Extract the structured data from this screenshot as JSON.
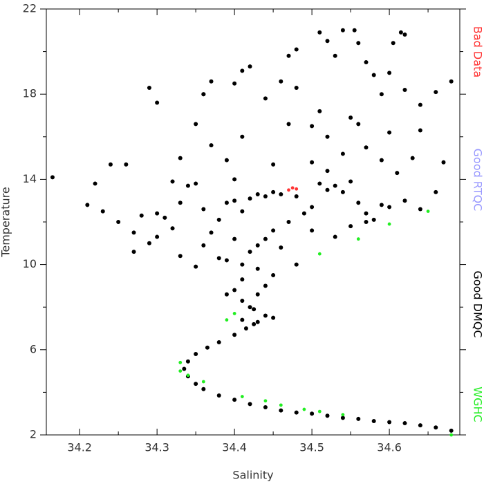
{
  "chart_data": {
    "type": "scatter",
    "xlabel": "Salinity",
    "ylabel": "Temperature",
    "xlim": [
      34.157,
      34.691
    ],
    "ylim": [
      2,
      22
    ],
    "xticks": [
      34.2,
      34.3,
      34.4,
      34.5,
      34.6
    ],
    "xminorticks": [
      34.25,
      34.35,
      34.45,
      34.55,
      34.65
    ],
    "yticks": [
      2,
      6,
      10,
      14,
      18,
      22
    ],
    "yminorticks": [
      4,
      8,
      12,
      16,
      20
    ],
    "series": [
      {
        "name": "Bad Data",
        "color": "#ff3333",
        "x": [
          34.47,
          34.475,
          34.48
        ],
        "y": [
          13.5,
          13.6,
          13.55
        ]
      },
      {
        "name": "Good RTQC",
        "color": "#9999ff",
        "x": [],
        "y": []
      },
      {
        "name": "Good DMQC",
        "color": "#000000",
        "x": [
          34.68,
          34.66,
          34.64,
          34.62,
          34.6,
          34.58,
          34.56,
          34.54,
          34.52,
          34.5,
          34.48,
          34.46,
          34.44,
          34.42,
          34.4,
          34.38,
          34.36,
          34.35,
          34.34,
          34.335,
          34.34,
          34.35,
          34.365,
          34.38,
          34.4,
          34.415,
          34.43,
          34.44,
          34.425,
          34.41,
          34.4,
          34.41,
          34.43,
          34.45,
          34.39,
          34.42,
          34.165,
          34.21,
          34.22,
          34.24,
          34.26,
          34.23,
          34.25,
          34.27,
          34.28,
          34.29,
          34.3,
          34.31,
          34.32,
          34.33,
          34.34,
          34.35,
          34.36,
          34.37,
          34.38,
          34.39,
          34.4,
          34.41,
          34.42,
          34.43,
          34.44,
          34.45,
          34.46,
          34.48,
          34.49,
          34.5,
          34.51,
          34.52,
          34.53,
          34.54,
          34.55,
          34.56,
          34.57,
          34.58,
          34.59,
          34.6,
          34.62,
          34.64,
          34.66,
          34.27,
          34.3,
          34.33,
          34.35,
          34.36,
          34.38,
          34.4,
          34.41,
          34.43,
          34.45,
          34.46,
          34.48,
          34.5,
          34.53,
          34.55,
          34.57,
          34.52,
          34.5,
          34.54,
          34.57,
          34.59,
          34.61,
          34.63,
          34.67,
          34.39,
          34.4,
          34.37,
          34.33,
          34.35,
          34.36,
          34.37,
          34.41,
          34.44,
          34.46,
          34.47,
          34.48,
          34.5,
          34.51,
          34.52,
          34.55,
          34.56,
          34.59,
          34.6,
          34.62,
          34.64,
          34.66,
          34.68,
          34.29,
          34.3,
          34.36,
          34.4,
          34.41,
          34.42,
          34.47,
          34.48,
          34.51,
          34.52,
          34.53,
          34.54,
          34.555,
          34.56,
          34.57,
          34.58,
          34.6,
          34.605,
          34.615,
          34.62,
          34.64,
          34.32,
          34.45,
          34.47,
          34.44,
          34.42,
          34.43,
          34.44,
          34.39,
          34.41,
          34.45,
          34.425
        ],
        "y": [
          2.2,
          2.35,
          2.45,
          2.55,
          2.6,
          2.65,
          2.75,
          2.8,
          2.9,
          3.0,
          3.05,
          3.15,
          3.3,
          3.45,
          3.65,
          3.85,
          4.15,
          4.4,
          4.75,
          5.1,
          5.45,
          5.8,
          6.1,
          6.35,
          6.7,
          7.0,
          7.3,
          7.6,
          7.9,
          8.3,
          8.8,
          9.3,
          9.8,
          9.5,
          10.2,
          10.6,
          14.1,
          12.8,
          13.8,
          14.7,
          14.7,
          12.5,
          12.0,
          11.5,
          12.3,
          11.0,
          12.4,
          12.2,
          11.7,
          12.9,
          13.7,
          13.8,
          12.6,
          11.5,
          12.1,
          12.9,
          13.0,
          12.5,
          13.1,
          13.3,
          13.2,
          13.4,
          13.3,
          13.2,
          12.4,
          12.7,
          13.8,
          13.5,
          13.7,
          13.4,
          13.9,
          12.9,
          12.4,
          12.1,
          12.8,
          12.7,
          13.0,
          12.6,
          13.4,
          10.6,
          11.3,
          10.4,
          9.9,
          10.9,
          10.3,
          11.2,
          10.0,
          10.9,
          11.6,
          10.8,
          10.0,
          11.6,
          11.3,
          11.8,
          12.0,
          14.4,
          14.8,
          15.2,
          15.5,
          14.9,
          14.3,
          15.0,
          14.8,
          14.9,
          14.0,
          15.6,
          15.0,
          16.6,
          18.0,
          18.6,
          16.0,
          17.8,
          18.6,
          16.6,
          18.3,
          16.5,
          17.2,
          16.0,
          16.9,
          16.6,
          18.0,
          16.2,
          18.2,
          16.3,
          18.1,
          18.6,
          18.3,
          17.6,
          18.0,
          18.5,
          19.1,
          19.3,
          19.8,
          20.1,
          20.9,
          20.5,
          19.8,
          21.0,
          21.0,
          20.4,
          19.5,
          18.9,
          19.0,
          20.4,
          20.9,
          20.8,
          17.5,
          13.9,
          14.7,
          12.0,
          11.2,
          8.0,
          8.6,
          9.0,
          8.6,
          7.4,
          7.5,
          7.2
        ]
      },
      {
        "name": "WGHC",
        "color": "#22ee22",
        "x": [
          34.33,
          34.34,
          34.36,
          34.41,
          34.44,
          34.46,
          34.49,
          34.51,
          34.54,
          34.68,
          34.39,
          34.4,
          34.51,
          34.56,
          34.6,
          34.65,
          34.33
        ],
        "y": [
          5.0,
          4.8,
          4.5,
          3.8,
          3.6,
          3.4,
          3.2,
          3.1,
          2.95,
          2.0,
          7.4,
          7.7,
          10.5,
          11.2,
          11.9,
          12.5,
          5.4
        ]
      }
    ]
  }
}
